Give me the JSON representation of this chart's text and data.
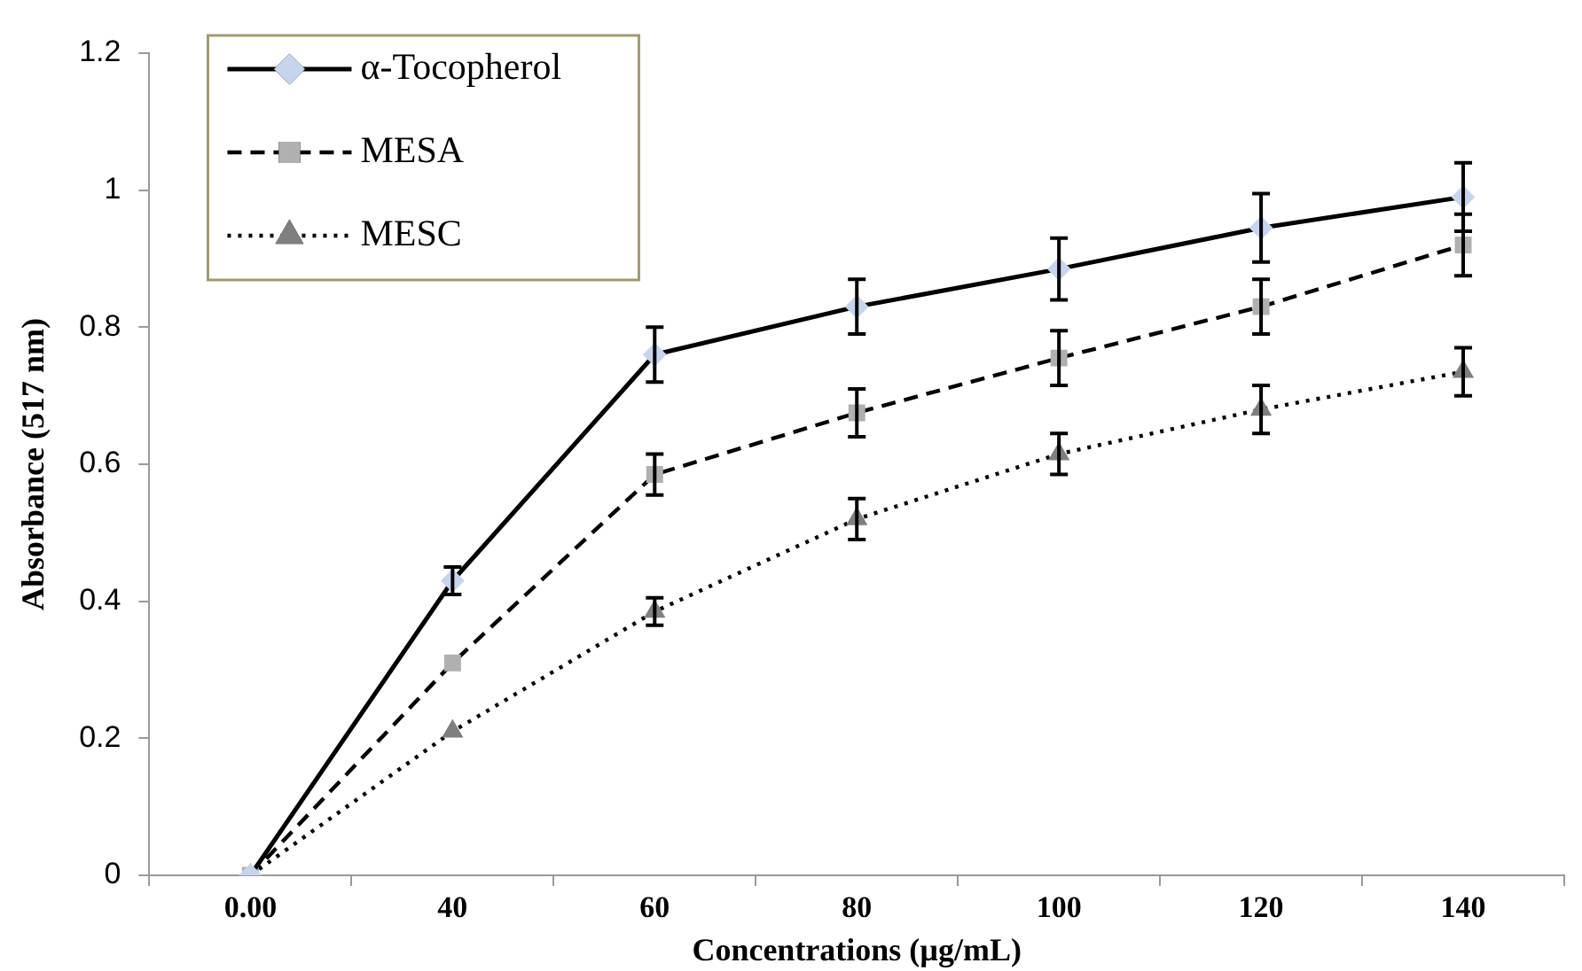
{
  "chart_data": {
    "type": "line",
    "xlabel": "Concentrations (µg/mL)",
    "ylabel": "Absorbance (517 nm)",
    "categories": [
      "0.00",
      "40",
      "60",
      "80",
      "100",
      "120",
      "140"
    ],
    "series": [
      {
        "name": "α-Tocopherol",
        "color": "#c5d5ee",
        "marker": "diamond",
        "line_style": "solid",
        "values": [
          0,
          0.43,
          0.76,
          0.83,
          0.885,
          0.945,
          0.99
        ],
        "errors": [
          null,
          0.02,
          0.04,
          0.04,
          0.045,
          0.05,
          0.05
        ]
      },
      {
        "name": "MESA",
        "color": "#b0b0b0",
        "marker": "square",
        "line_style": "dashed",
        "values": [
          0,
          0.31,
          0.585,
          0.675,
          0.755,
          0.83,
          0.92
        ],
        "errors": [
          null,
          null,
          0.03,
          0.035,
          0.04,
          0.04,
          0.045
        ]
      },
      {
        "name": "MESC",
        "color": "#7f7f7f",
        "marker": "triangle",
        "line_style": "dotted",
        "values": [
          0,
          0.21,
          0.385,
          0.52,
          0.615,
          0.68,
          0.735
        ],
        "errors": [
          null,
          null,
          0.02,
          0.03,
          0.03,
          0.035,
          0.035
        ]
      }
    ],
    "ylim": [
      0,
      1.2
    ],
    "yticks": [
      0,
      0.2,
      0.4,
      0.6,
      0.8,
      1,
      1.2
    ],
    "grid": false,
    "legend": "top left"
  }
}
